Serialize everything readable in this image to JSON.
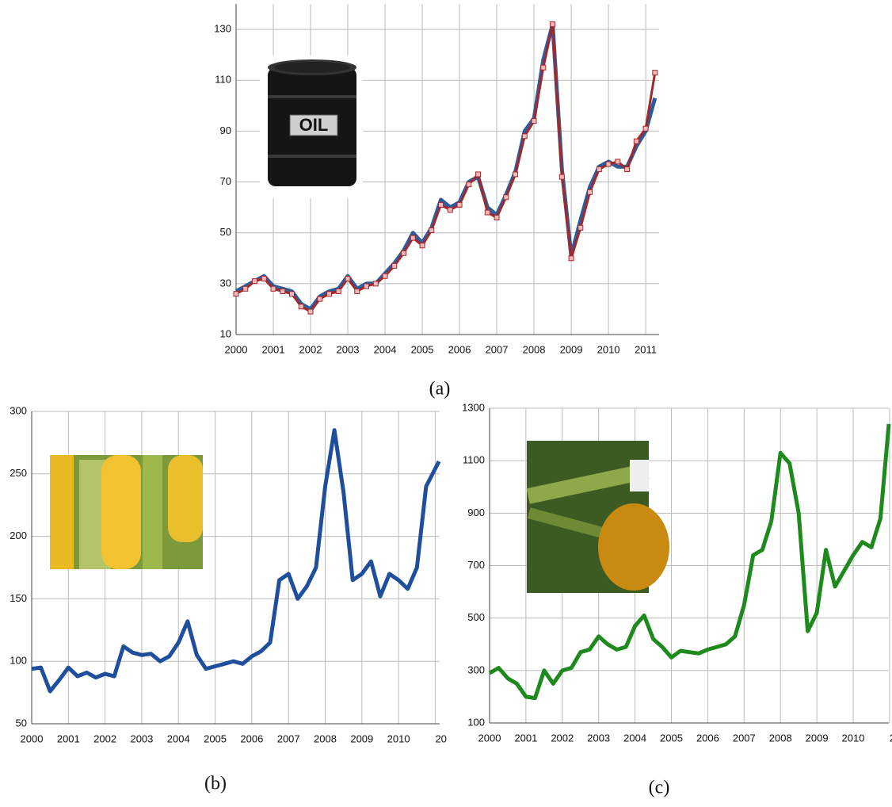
{
  "chart_data": [
    {
      "type": "line",
      "caption": "(a)",
      "image_text": "OIL",
      "xlim": [
        2000,
        2011.36
      ],
      "ylim": [
        10,
        140
      ],
      "xticks": [
        2000,
        2001,
        2002,
        2003,
        2004,
        2005,
        2006,
        2007,
        2008,
        2009,
        2010,
        2011
      ],
      "yticks": [
        10,
        30,
        50,
        70,
        90,
        110,
        130
      ],
      "grid": true,
      "x": [
        2000,
        2000.25,
        2000.5,
        2000.75,
        2001,
        2001.25,
        2001.5,
        2001.75,
        2002,
        2002.25,
        2002.5,
        2002.75,
        2003,
        2003.25,
        2003.5,
        2003.75,
        2004,
        2004.25,
        2004.5,
        2004.75,
        2005,
        2005.25,
        2005.5,
        2005.75,
        2006,
        2006.25,
        2006.5,
        2006.75,
        2007,
        2007.25,
        2007.5,
        2007.75,
        2008,
        2008.25,
        2008.5,
        2008.75,
        2009,
        2009.25,
        2009.5,
        2009.75,
        2010,
        2010.25,
        2010.5,
        2010.75,
        2011,
        2011.25
      ],
      "series": [
        {
          "color": "#2e5c9a",
          "markers": false,
          "values": [
            27,
            29,
            31,
            33,
            29,
            28,
            27,
            22,
            20,
            25,
            27,
            28,
            33,
            28,
            30,
            30,
            34,
            38,
            43,
            50,
            46,
            52,
            63,
            60,
            62,
            70,
            72,
            60,
            57,
            65,
            74,
            90,
            95,
            118,
            132,
            75,
            41,
            55,
            68,
            76,
            78,
            76,
            76,
            84,
            90,
            103
          ]
        },
        {
          "color": "#a3282c",
          "markers": true,
          "values": [
            26,
            28,
            31,
            32,
            28,
            27,
            26,
            21,
            19,
            24,
            26,
            27,
            32,
            27,
            29,
            30,
            33,
            37,
            42,
            48,
            45,
            51,
            61,
            59,
            61,
            69,
            73,
            58,
            56,
            64,
            73,
            88,
            94,
            115,
            132,
            72,
            40,
            52,
            66,
            75,
            77,
            78,
            75,
            86,
            91,
            113
          ]
        }
      ]
    },
    {
      "type": "line",
      "caption": "(b)",
      "xlim": [
        2000,
        2011.12
      ],
      "ylim": [
        50,
        300
      ],
      "xticks": [
        2000,
        2001,
        2002,
        2003,
        2004,
        2005,
        2006,
        2007,
        2008,
        2009,
        2010,
        {
          "value": 2011,
          "label": "20"
        }
      ],
      "yticks": [
        50,
        100,
        150,
        200,
        250,
        300
      ],
      "grid": true,
      "x": [
        2000,
        2000.25,
        2000.5,
        2000.75,
        2001,
        2001.25,
        2001.5,
        2001.75,
        2002,
        2002.25,
        2002.5,
        2002.75,
        2003,
        2003.25,
        2003.5,
        2003.75,
        2004,
        2004.25,
        2004.5,
        2004.75,
        2005,
        2005.25,
        2005.5,
        2005.75,
        2006,
        2006.25,
        2006.5,
        2006.75,
        2007,
        2007.25,
        2007.5,
        2007.75,
        2008,
        2008.25,
        2008.5,
        2008.75,
        2009,
        2009.25,
        2009.5,
        2009.75,
        2010,
        2010.25,
        2010.5,
        2010.75,
        2011.1
      ],
      "series": [
        {
          "color": "#1f4e9c",
          "markers": false,
          "values": [
            94,
            95,
            76,
            85,
            95,
            88,
            91,
            87,
            90,
            88,
            112,
            107,
            105,
            106,
            100,
            104,
            115,
            132,
            105,
            94,
            96,
            98,
            100,
            98,
            104,
            108,
            115,
            165,
            170,
            150,
            160,
            175,
            240,
            285,
            235,
            165,
            170,
            180,
            152,
            170,
            165,
            158,
            175,
            240,
            260
          ]
        }
      ]
    },
    {
      "type": "line",
      "caption": "(c)",
      "xlim": [
        2000,
        2010.98
      ],
      "ylim": [
        100,
        1300
      ],
      "xticks": [
        2000,
        2001,
        2002,
        2003,
        2004,
        2005,
        2006,
        2007,
        2008,
        2009,
        2010,
        {
          "value": 2011,
          "label": "20"
        }
      ],
      "yticks": [
        100,
        300,
        500,
        700,
        900,
        1100,
        1300
      ],
      "grid": true,
      "x": [
        2000,
        2000.25,
        2000.5,
        2000.75,
        2001,
        2001.25,
        2001.5,
        2001.75,
        2002,
        2002.25,
        2002.5,
        2002.75,
        2003,
        2003.25,
        2003.5,
        2003.75,
        2004,
        2004.25,
        2004.5,
        2004.75,
        2005,
        2005.25,
        2005.5,
        2005.75,
        2006,
        2006.25,
        2006.5,
        2006.75,
        2007,
        2007.25,
        2007.5,
        2007.75,
        2008,
        2008.25,
        2008.5,
        2008.75,
        2009,
        2009.25,
        2009.5,
        2009.75,
        2010,
        2010.25,
        2010.5,
        2010.75,
        2010.98
      ],
      "series": [
        {
          "color": "#1e8a1e",
          "markers": false,
          "values": [
            290,
            310,
            270,
            250,
            200,
            195,
            300,
            250,
            300,
            310,
            370,
            380,
            430,
            400,
            380,
            390,
            470,
            510,
            420,
            390,
            350,
            375,
            370,
            365,
            380,
            390,
            400,
            430,
            550,
            740,
            760,
            870,
            1130,
            1090,
            900,
            450,
            520,
            760,
            620,
            680,
            740,
            790,
            770,
            880,
            1240
          ]
        }
      ]
    }
  ]
}
